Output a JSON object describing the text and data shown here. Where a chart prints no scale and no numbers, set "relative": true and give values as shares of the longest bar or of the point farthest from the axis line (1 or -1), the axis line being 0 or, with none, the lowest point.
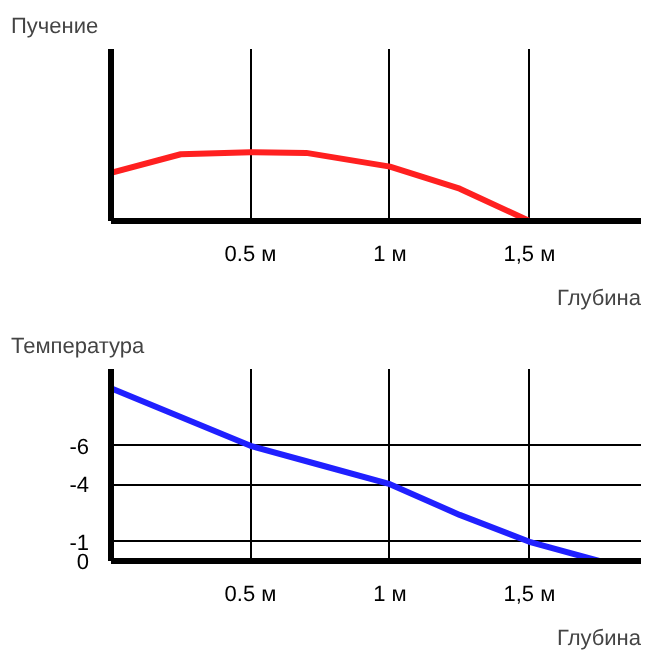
{
  "chart_data": [
    {
      "type": "line",
      "ylabel": "Пучение",
      "xlabel": "Глубина",
      "relative": true,
      "x": [
        0,
        0.25,
        0.5,
        0.7,
        1,
        1.25,
        1.5
      ],
      "values": [
        0.7,
        0.97,
        1.0,
        0.99,
        0.79,
        0.47,
        0
      ],
      "color": "#ff2020",
      "xlim": [
        0,
        1.9
      ],
      "xticks": [
        {
          "value": 0.5,
          "label": "0.5 м"
        },
        {
          "value": 1,
          "label": "1 м"
        },
        {
          "value": 1.5,
          "label": "1,5 м"
        }
      ],
      "grid": "x",
      "tick_labels": "x"
    },
    {
      "type": "line",
      "ylabel": "Температура",
      "xlabel": "Глубина",
      "x": [
        0,
        0.25,
        0.5,
        0.75,
        1,
        1.25,
        1.5,
        1.75
      ],
      "values": [
        -9,
        -7.5,
        -6,
        -5,
        -4,
        -2.4,
        -1,
        0
      ],
      "color": "#2020ff",
      "xlim": [
        0,
        1.9
      ],
      "ylim": [
        0,
        -10
      ],
      "xticks": [
        {
          "value": 0.5,
          "label": "0.5 м"
        },
        {
          "value": 1,
          "label": "1 м"
        },
        {
          "value": 1.5,
          "label": "1,5 м"
        }
      ],
      "yticks": [
        -6,
        -4,
        -1,
        0
      ],
      "grid": true
    }
  ]
}
